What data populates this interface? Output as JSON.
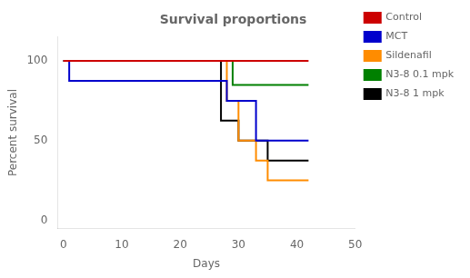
{
  "chart_data": {
    "type": "line",
    "title": "Survival proportions",
    "xlabel": "Days",
    "ylabel": "Percent survival",
    "xlim": [
      -1,
      50
    ],
    "ylim": [
      -5,
      115
    ],
    "xticks": [
      0,
      10,
      20,
      30,
      40,
      50
    ],
    "yticks": [
      0,
      50,
      100
    ],
    "grid": false,
    "legend": "right",
    "series": [
      {
        "name": "Control",
        "color": "#cc0000",
        "x": [
          0,
          42
        ],
        "values": [
          100,
          100
        ]
      },
      {
        "name": "MCT",
        "color": "#0000cc",
        "x": [
          0,
          1,
          1,
          28,
          28,
          33,
          33,
          42
        ],
        "values": [
          100,
          100,
          87.5,
          87.5,
          75,
          75,
          50,
          50
        ]
      },
      {
        "name": "Sildenafil",
        "color": "#ff8c00",
        "x": [
          0,
          28,
          28,
          30,
          30,
          33,
          33,
          35,
          35,
          42
        ],
        "values": [
          100,
          100,
          75,
          75,
          50,
          50,
          37.5,
          37.5,
          25,
          25
        ]
      },
      {
        "name": "N3-8 0.1 mpk",
        "color": "#008000",
        "x": [
          0,
          29,
          29,
          42
        ],
        "values": [
          100,
          100,
          85,
          85
        ]
      },
      {
        "name": "N3-8 1 mpk",
        "color": "#000000",
        "x": [
          0,
          27,
          27,
          30,
          30,
          35,
          35,
          42
        ],
        "values": [
          100,
          100,
          62.5,
          62.5,
          50,
          50,
          37.5,
          37.5
        ]
      }
    ]
  }
}
